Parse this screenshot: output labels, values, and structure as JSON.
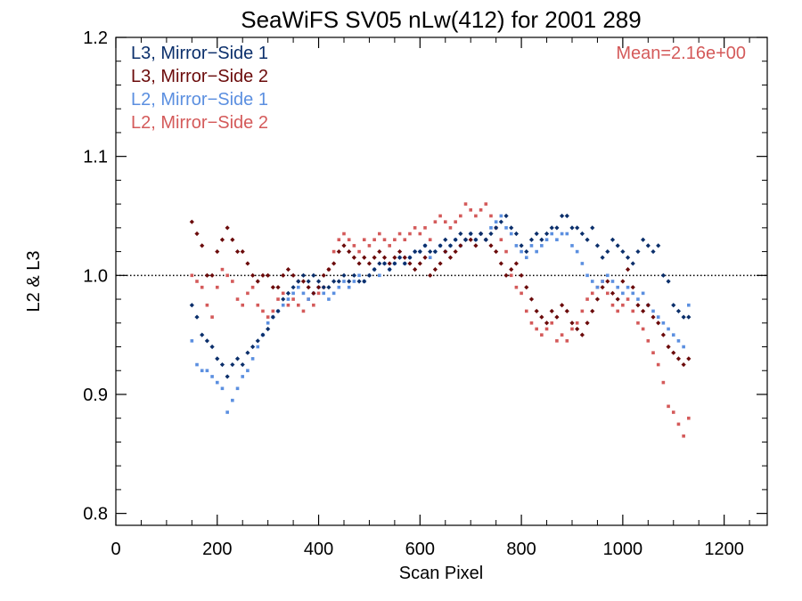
{
  "chart_data": {
    "type": "scatter",
    "title": "SeaWiFS SV05 nLw(412) for 2001 289",
    "xlabel": "Scan Pixel",
    "ylabel": "L2 & L3",
    "xlim": [
      0,
      1285
    ],
    "ylim": [
      0.79,
      1.2
    ],
    "x_ticks": [
      0,
      200,
      400,
      600,
      800,
      1000,
      1200
    ],
    "y_ticks": [
      0.8,
      0.9,
      1.0,
      1.1,
      1.2
    ],
    "x_tick_labels": [
      "0",
      "200",
      "400",
      "600",
      "800",
      "1000",
      "1200"
    ],
    "y_tick_labels": [
      "0.8",
      "0.9",
      "1.0",
      "1.1",
      "1.2"
    ],
    "reference_line": 1.0,
    "legend_position": "top-left",
    "annotation": "Mean=2.16e+00",
    "annotation_position": "top-right",
    "series": [
      {
        "name": "L3, Mirror−Side 1",
        "color": "#0b2f6b",
        "marker": "diamond",
        "x": [
          150,
          160,
          170,
          180,
          190,
          200,
          210,
          220,
          230,
          240,
          250,
          260,
          270,
          280,
          290,
          300,
          310,
          320,
          330,
          340,
          350,
          360,
          370,
          380,
          390,
          400,
          410,
          420,
          430,
          440,
          450,
          460,
          470,
          480,
          490,
          500,
          510,
          520,
          530,
          540,
          550,
          560,
          570,
          580,
          590,
          600,
          610,
          620,
          630,
          640,
          650,
          660,
          670,
          680,
          690,
          700,
          710,
          720,
          730,
          740,
          750,
          760,
          770,
          780,
          790,
          800,
          810,
          820,
          830,
          840,
          850,
          860,
          870,
          880,
          890,
          900,
          910,
          920,
          930,
          940,
          950,
          960,
          970,
          980,
          990,
          1000,
          1010,
          1020,
          1030,
          1040,
          1050,
          1060,
          1070,
          1080,
          1090,
          1100,
          1110,
          1120,
          1130
        ],
        "y": [
          0.975,
          0.965,
          0.95,
          0.945,
          0.94,
          0.93,
          0.925,
          0.915,
          0.925,
          0.93,
          0.925,
          0.935,
          0.94,
          0.945,
          0.95,
          0.955,
          0.965,
          0.97,
          0.98,
          0.985,
          0.99,
          0.995,
          1.0,
          0.995,
          1.0,
          0.995,
          0.99,
          0.99,
          0.995,
          0.995,
          1.0,
          0.995,
          1.0,
          0.995,
          0.995,
          1.0,
          1.005,
          1.01,
          1.01,
          1.005,
          1.01,
          1.015,
          1.01,
          1.015,
          1.02,
          1.02,
          1.025,
          1.02,
          1.02,
          1.025,
          1.03,
          1.025,
          1.03,
          1.035,
          1.03,
          1.035,
          1.03,
          1.035,
          1.03,
          1.035,
          1.04,
          1.045,
          1.05,
          1.04,
          1.035,
          1.025,
          1.02,
          1.03,
          1.035,
          1.03,
          1.035,
          1.04,
          1.04,
          1.05,
          1.05,
          1.04,
          1.04,
          1.035,
          1.03,
          1.04,
          1.025,
          1.015,
          1.02,
          1.03,
          1.025,
          1.02,
          1.015,
          1.01,
          1.02,
          1.03,
          1.025,
          1.02,
          1.025,
          1.0,
          0.995,
          0.975,
          0.97,
          0.965,
          0.965
        ]
      },
      {
        "name": "L3, Mirror−Side 2",
        "color": "#6b0b0b",
        "marker": "diamond",
        "x": [
          150,
          160,
          170,
          180,
          190,
          200,
          210,
          220,
          230,
          240,
          250,
          260,
          270,
          280,
          290,
          300,
          310,
          320,
          330,
          340,
          350,
          360,
          370,
          380,
          390,
          400,
          410,
          420,
          430,
          440,
          450,
          460,
          470,
          480,
          490,
          500,
          510,
          520,
          530,
          540,
          550,
          560,
          570,
          580,
          590,
          600,
          610,
          620,
          630,
          640,
          650,
          660,
          670,
          680,
          690,
          700,
          710,
          720,
          730,
          740,
          750,
          760,
          770,
          780,
          790,
          800,
          810,
          820,
          830,
          840,
          850,
          860,
          870,
          880,
          890,
          900,
          910,
          920,
          930,
          940,
          950,
          960,
          970,
          980,
          990,
          1000,
          1010,
          1020,
          1030,
          1040,
          1050,
          1060,
          1070,
          1080,
          1090,
          1100,
          1110,
          1120,
          1130
        ],
        "y": [
          1.045,
          1.035,
          1.025,
          1.0,
          1.0,
          1.02,
          1.03,
          1.04,
          1.03,
          1.02,
          1.02,
          1.01,
          1.0,
          0.995,
          1.0,
          1.0,
          0.99,
          0.99,
          1.0,
          1.005,
          1.0,
          0.995,
          0.995,
          0.99,
          0.985,
          0.99,
          1.0,
          1.005,
          1.01,
          1.02,
          1.025,
          1.02,
          1.015,
          1.01,
          1.015,
          1.01,
          1.015,
          1.02,
          1.015,
          1.01,
          1.015,
          1.02,
          1.015,
          1.01,
          1.005,
          1.01,
          1.015,
          1.0,
          1.005,
          1.01,
          1.02,
          1.015,
          1.02,
          1.025,
          1.03,
          1.03,
          1.025,
          1.035,
          1.03,
          1.025,
          1.02,
          1.01,
          1.0,
          1.005,
          1.01,
          1.0,
          0.99,
          0.98,
          0.97,
          0.965,
          0.96,
          0.97,
          0.965,
          0.975,
          0.97,
          0.96,
          0.955,
          0.95,
          0.96,
          0.97,
          0.98,
          0.99,
          0.995,
          0.985,
          0.98,
          0.995,
          1.005,
          0.99,
          0.975,
          0.97,
          0.975,
          0.965,
          0.96,
          0.95,
          0.94,
          0.935,
          0.93,
          0.925,
          0.93
        ]
      },
      {
        "name": "L2, Mirror−Side 1",
        "color": "#5b8fe0",
        "marker": "square",
        "x": [
          150,
          160,
          170,
          180,
          190,
          200,
          210,
          220,
          230,
          240,
          250,
          260,
          270,
          280,
          290,
          300,
          310,
          320,
          330,
          340,
          350,
          360,
          370,
          380,
          390,
          400,
          410,
          420,
          430,
          440,
          450,
          460,
          470,
          480,
          490,
          500,
          510,
          520,
          530,
          540,
          550,
          560,
          570,
          580,
          590,
          600,
          610,
          620,
          630,
          640,
          650,
          660,
          670,
          680,
          690,
          700,
          710,
          720,
          730,
          740,
          750,
          760,
          770,
          780,
          790,
          800,
          810,
          820,
          830,
          840,
          850,
          860,
          870,
          880,
          890,
          900,
          910,
          920,
          930,
          940,
          950,
          960,
          970,
          980,
          990,
          1000,
          1010,
          1020,
          1030,
          1040,
          1050,
          1060,
          1070,
          1080,
          1090,
          1100,
          1110,
          1120,
          1130
        ],
        "y": [
          0.945,
          0.925,
          0.92,
          0.92,
          0.915,
          0.91,
          0.905,
          0.885,
          0.895,
          0.905,
          0.915,
          0.92,
          0.93,
          0.94,
          0.95,
          0.96,
          0.965,
          0.97,
          0.975,
          0.98,
          0.985,
          0.99,
          0.985,
          0.98,
          0.985,
          0.99,
          0.985,
          0.98,
          0.985,
          0.99,
          0.995,
          0.99,
          0.995,
          1.0,
          0.995,
          1.0,
          1.005,
          1.0,
          1.01,
          1.005,
          1.01,
          1.015,
          1.01,
          1.015,
          1.02,
          1.02,
          1.025,
          1.015,
          1.02,
          1.025,
          1.02,
          1.025,
          1.03,
          1.025,
          1.03,
          1.035,
          1.03,
          1.035,
          1.03,
          1.04,
          1.045,
          1.05,
          1.04,
          1.035,
          1.025,
          1.02,
          1.015,
          1.025,
          1.02,
          1.025,
          1.03,
          1.035,
          1.03,
          1.035,
          1.035,
          1.025,
          1.02,
          1.01,
          1.0,
          0.995,
          0.99,
          0.995,
          1.0,
          0.995,
          0.99,
          0.985,
          0.99,
          0.985,
          0.98,
          0.985,
          0.975,
          0.97,
          0.965,
          0.96,
          0.955,
          0.95,
          0.945,
          0.94,
          0.975
        ]
      },
      {
        "name": "L2, Mirror−Side 2",
        "color": "#d45a5a",
        "marker": "square",
        "x": [
          150,
          160,
          170,
          180,
          190,
          200,
          210,
          220,
          230,
          240,
          250,
          260,
          270,
          280,
          290,
          300,
          310,
          320,
          330,
          340,
          350,
          360,
          370,
          380,
          390,
          400,
          410,
          420,
          430,
          440,
          450,
          460,
          470,
          480,
          490,
          500,
          510,
          520,
          530,
          540,
          550,
          560,
          570,
          580,
          590,
          600,
          610,
          620,
          630,
          640,
          650,
          660,
          670,
          680,
          690,
          700,
          710,
          720,
          730,
          740,
          750,
          760,
          770,
          780,
          790,
          800,
          810,
          820,
          830,
          840,
          850,
          860,
          870,
          880,
          890,
          900,
          910,
          920,
          930,
          940,
          950,
          960,
          970,
          980,
          990,
          1000,
          1010,
          1020,
          1030,
          1040,
          1050,
          1060,
          1070,
          1080,
          1090,
          1100,
          1110,
          1120,
          1130
        ],
        "y": [
          1.0,
          0.995,
          0.99,
          0.975,
          0.965,
          0.99,
          1.005,
          1.0,
          0.995,
          0.98,
          0.975,
          0.985,
          0.99,
          0.975,
          0.97,
          0.965,
          0.97,
          0.98,
          0.985,
          0.975,
          0.98,
          0.975,
          0.97,
          0.98,
          0.975,
          0.985,
          0.99,
          1.005,
          1.02,
          1.03,
          1.035,
          1.03,
          1.025,
          1.02,
          1.03,
          1.025,
          1.03,
          1.035,
          1.03,
          1.025,
          1.03,
          1.035,
          1.03,
          1.035,
          1.04,
          1.035,
          1.04,
          1.03,
          1.045,
          1.05,
          1.045,
          1.04,
          1.045,
          1.05,
          1.06,
          1.055,
          1.05,
          1.055,
          1.06,
          1.05,
          1.04,
          1.03,
          1.02,
          1.0,
          0.99,
          0.985,
          0.97,
          0.96,
          0.955,
          0.95,
          0.955,
          0.96,
          0.945,
          0.95,
          0.945,
          0.955,
          0.96,
          0.97,
          0.98,
          0.985,
          0.99,
          0.995,
          0.985,
          0.975,
          0.97,
          0.975,
          0.98,
          0.97,
          0.96,
          0.955,
          0.945,
          0.935,
          0.925,
          0.91,
          0.89,
          0.885,
          0.875,
          0.865,
          0.88
        ]
      }
    ]
  }
}
